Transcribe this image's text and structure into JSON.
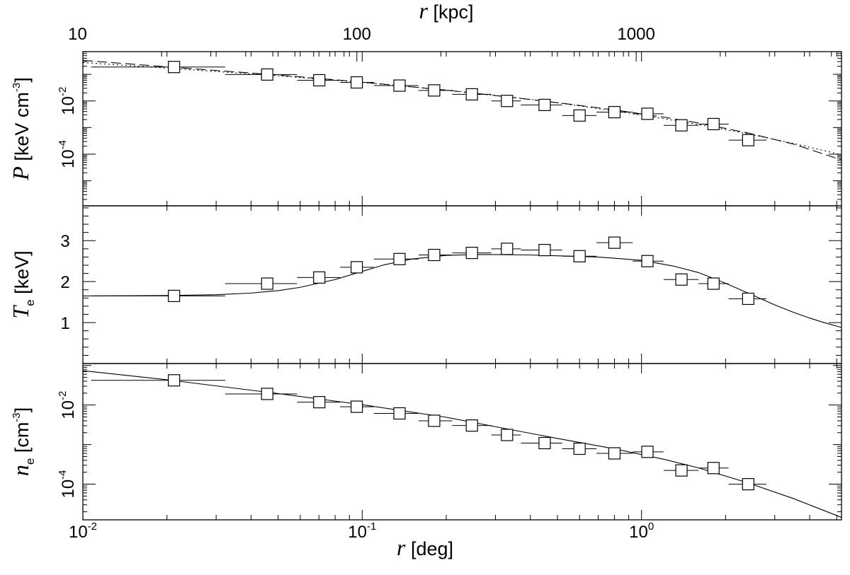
{
  "chart_data": {
    "type": "scatter",
    "panels_share_x": true,
    "x_axis_bottom": {
      "symbol": "r",
      "unit": "[deg]",
      "scale": "log",
      "range": [
        0.01,
        5.2
      ],
      "ticks": [
        {
          "base": "10",
          "exp": "-2",
          "value": 0.01
        },
        {
          "base": "10",
          "exp": "-1",
          "value": 0.1
        },
        {
          "base": "10",
          "exp": "0",
          "value": 1
        }
      ]
    },
    "x_axis_top": {
      "symbol": "r",
      "unit": "[kpc]",
      "scale": "log",
      "kpc_per_deg": 1045,
      "ticks": [
        {
          "label": "10",
          "value": 10
        },
        {
          "label": "100",
          "value": 100
        },
        {
          "label": "1000",
          "value": 1000
        }
      ]
    },
    "panels": [
      {
        "id": "pressure",
        "ylabel_symbol": "P",
        "ylabel_unit": "[keV cm",
        "ylabel_unit_exp": "-3",
        "ylabel_close": "]",
        "yscale": "log",
        "ylim": [
          1.15e-06,
          0.71
        ],
        "yticks": [
          {
            "base": "10",
            "exp": "-2",
            "value": 0.01
          },
          {
            "base": "10",
            "exp": "-4",
            "value": 0.0001
          }
        ],
        "points": [
          {
            "x": 0.0212,
            "y": 0.188,
            "x_lo": 0.0107,
            "x_hi": 0.0323
          },
          {
            "x": 0.0457,
            "y": 0.0981,
            "x_lo": 0.0323,
            "x_hi": 0.0585
          },
          {
            "x": 0.0702,
            "y": 0.0597,
            "x_lo": 0.0585,
            "x_hi": 0.0833
          },
          {
            "x": 0.0956,
            "y": 0.0496,
            "x_lo": 0.0833,
            "x_hi": 0.11
          },
          {
            "x": 0.136,
            "y": 0.0376,
            "x_lo": 0.11,
            "x_hi": 0.159
          },
          {
            "x": 0.181,
            "y": 0.0248,
            "x_lo": 0.159,
            "x_hi": 0.21
          },
          {
            "x": 0.247,
            "y": 0.0177,
            "x_lo": 0.21,
            "x_hi": 0.29
          },
          {
            "x": 0.33,
            "y": 0.01,
            "x_lo": 0.29,
            "x_hi": 0.37
          },
          {
            "x": 0.45,
            "y": 0.00706,
            "x_lo": 0.37,
            "x_hi": 0.52
          },
          {
            "x": 0.6,
            "y": 0.00283,
            "x_lo": 0.52,
            "x_hi": 0.69
          },
          {
            "x": 0.8,
            "y": 0.00379,
            "x_lo": 0.69,
            "x_hi": 0.93
          },
          {
            "x": 1.05,
            "y": 0.00329,
            "x_lo": 0.93,
            "x_hi": 1.2
          },
          {
            "x": 1.39,
            "y": 0.00121,
            "x_lo": 1.2,
            "x_hi": 1.6
          },
          {
            "x": 1.81,
            "y": 0.00135,
            "x_lo": 1.6,
            "x_hi": 2.05
          },
          {
            "x": 2.41,
            "y": 0.000336,
            "x_lo": 2.05,
            "x_hi": 2.8
          }
        ],
        "curves": [
          {
            "style": "dashed",
            "x": [
              0.01,
              0.02,
              0.05,
              0.1,
              0.2,
              0.35,
              0.5,
              0.8,
              1.2,
              1.6,
              2.4,
              3.5,
              5.2
            ],
            "y": [
              0.334,
              0.19,
              0.094,
              0.051,
              0.0253,
              0.0133,
              0.00859,
              0.00461,
              0.00246,
              0.00148,
              0.000629,
              0.000239,
              6.08e-05
            ]
          },
          {
            "style": "dotted",
            "x": [
              0.01,
              0.02,
              0.05,
              0.1,
              0.2,
              0.35,
              0.5,
              0.8,
              1.2,
              1.6,
              2.4,
              3.5,
              5.2
            ],
            "y": [
              0.277,
              0.171,
              0.0876,
              0.0496,
              0.0257,
              0.0135,
              0.0085,
              0.00424,
              0.00216,
              0.00129,
              0.000581,
              0.000253,
              9.54e-05
            ]
          }
        ]
      },
      {
        "id": "temperature",
        "ylabel_symbol": "T",
        "ylabel_subscript": "e",
        "ylabel_unit": "[keV]",
        "yscale": "linear",
        "ylim": [
          0.0,
          3.85
        ],
        "yticks": [
          {
            "label": "1",
            "value": 1
          },
          {
            "label": "2",
            "value": 2
          },
          {
            "label": "3",
            "value": 3
          }
        ],
        "points": [
          {
            "x": 0.0212,
            "y": 1.65,
            "x_lo": 0.0107,
            "x_hi": 0.0323
          },
          {
            "x": 0.0457,
            "y": 1.95,
            "x_lo": 0.0323,
            "x_hi": 0.0585
          },
          {
            "x": 0.0702,
            "y": 2.1,
            "x_lo": 0.0585,
            "x_hi": 0.0833
          },
          {
            "x": 0.0956,
            "y": 2.35,
            "x_lo": 0.0833,
            "x_hi": 0.11
          },
          {
            "x": 0.136,
            "y": 2.55,
            "x_lo": 0.11,
            "x_hi": 0.159
          },
          {
            "x": 0.181,
            "y": 2.65,
            "x_lo": 0.159,
            "x_hi": 0.21
          },
          {
            "x": 0.247,
            "y": 2.7,
            "x_lo": 0.21,
            "x_hi": 0.29
          },
          {
            "x": 0.33,
            "y": 2.8,
            "x_lo": 0.29,
            "x_hi": 0.37
          },
          {
            "x": 0.45,
            "y": 2.77,
            "x_lo": 0.37,
            "x_hi": 0.52
          },
          {
            "x": 0.6,
            "y": 2.62,
            "x_lo": 0.52,
            "x_hi": 0.69
          },
          {
            "x": 0.8,
            "y": 2.95,
            "x_lo": 0.69,
            "x_hi": 0.93
          },
          {
            "x": 1.05,
            "y": 2.5,
            "x_lo": 0.93,
            "x_hi": 1.2
          },
          {
            "x": 1.39,
            "y": 2.05,
            "x_lo": 1.2,
            "x_hi": 1.6
          },
          {
            "x": 1.81,
            "y": 1.95,
            "x_lo": 1.6,
            "x_hi": 2.05
          },
          {
            "x": 2.41,
            "y": 1.58,
            "x_lo": 2.05,
            "x_hi": 2.8
          }
        ],
        "curves": [
          {
            "style": "solid",
            "x": [
              0.01,
              0.02,
              0.03,
              0.04,
              0.05,
              0.06,
              0.08,
              0.1,
              0.12,
              0.15,
              0.2,
              0.25,
              0.3,
              0.4,
              0.5,
              0.7,
              1.0,
              1.3,
              1.6,
              2.0,
              2.5,
              3.0,
              3.5,
              4.0,
              4.5,
              5.2
            ],
            "y": [
              1.65,
              1.66,
              1.68,
              1.72,
              1.78,
              1.86,
              2.05,
              2.25,
              2.41,
              2.55,
              2.64,
              2.66,
              2.66,
              2.65,
              2.63,
              2.6,
              2.52,
              2.38,
              2.22,
              1.96,
              1.67,
              1.43,
              1.25,
              1.11,
              1.0,
              0.88
            ]
          }
        ]
      },
      {
        "id": "density",
        "ylabel_symbol": "n",
        "ylabel_subscript": "e",
        "ylabel_unit": "[cm",
        "ylabel_unit_exp": "-3",
        "ylabel_close": "]",
        "yscale": "log",
        "ylim": [
          1.25e-05,
          0.112
        ],
        "yticks": [
          {
            "base": "10",
            "exp": "-2",
            "value": 0.01
          },
          {
            "base": "10",
            "exp": "-4",
            "value": 0.0001
          }
        ],
        "points": [
          {
            "x": 0.0212,
            "y": 0.0421,
            "x_lo": 0.0107,
            "x_hi": 0.0323
          },
          {
            "x": 0.0457,
            "y": 0.0191,
            "x_lo": 0.0323,
            "x_hi": 0.0585
          },
          {
            "x": 0.0702,
            "y": 0.0118,
            "x_lo": 0.0585,
            "x_hi": 0.0833
          },
          {
            "x": 0.0956,
            "y": 0.00906,
            "x_lo": 0.0833,
            "x_hi": 0.11
          },
          {
            "x": 0.136,
            "y": 0.00614,
            "x_lo": 0.11,
            "x_hi": 0.159
          },
          {
            "x": 0.181,
            "y": 0.00399,
            "x_lo": 0.159,
            "x_hi": 0.21
          },
          {
            "x": 0.247,
            "y": 0.00303,
            "x_lo": 0.21,
            "x_hi": 0.29
          },
          {
            "x": 0.33,
            "y": 0.00175,
            "x_lo": 0.29,
            "x_hi": 0.37
          },
          {
            "x": 0.45,
            "y": 0.00109,
            "x_lo": 0.37,
            "x_hi": 0.52
          },
          {
            "x": 0.6,
            "y": 0.000784,
            "x_lo": 0.52,
            "x_hi": 0.69
          },
          {
            "x": 0.8,
            "y": 0.000599,
            "x_lo": 0.69,
            "x_hi": 0.93
          },
          {
            "x": 1.05,
            "y": 0.000654,
            "x_lo": 0.93,
            "x_hi": 1.2
          },
          {
            "x": 1.39,
            "y": 0.000222,
            "x_lo": 1.2,
            "x_hi": 1.6
          },
          {
            "x": 1.81,
            "y": 0.000255,
            "x_lo": 1.6,
            "x_hi": 2.05
          },
          {
            "x": 2.41,
            "y": 9.96e-05,
            "x_lo": 2.05,
            "x_hi": 2.8
          }
        ],
        "curves": [
          {
            "style": "solid",
            "x": [
              0.01,
              0.02,
              0.05,
              0.1,
              0.2,
              0.35,
              0.5,
              0.8,
              1.2,
              1.6,
              2.4,
              3.5,
              5.2
            ],
            "y": [
              0.0738,
              0.0435,
              0.0195,
              0.0102,
              0.0049,
              0.0023,
              0.00143,
              0.000781,
              0.000426,
              0.000258,
              0.000108,
              4.31e-05,
              1.44e-05
            ]
          }
        ]
      }
    ]
  }
}
